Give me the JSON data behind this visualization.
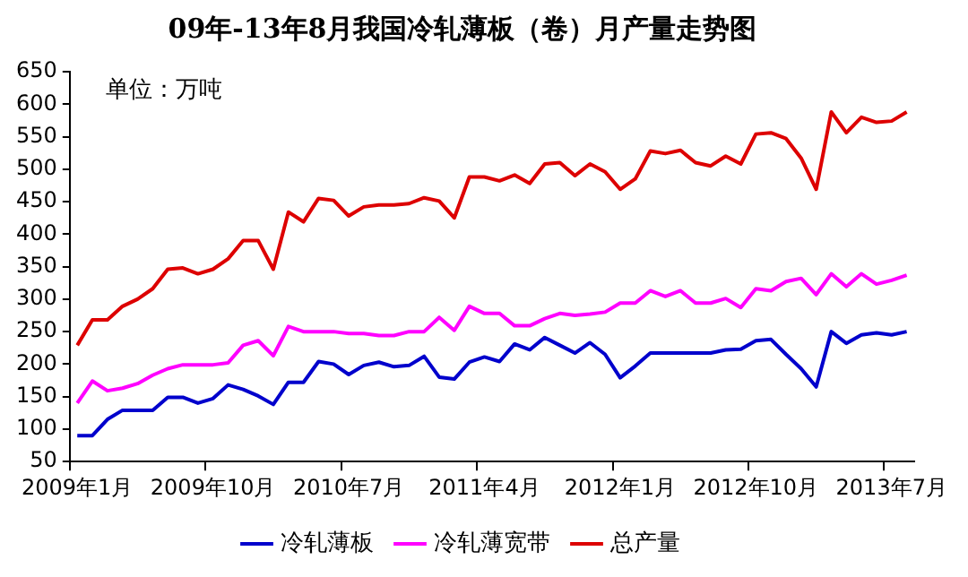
{
  "chart_data": {
    "type": "line",
    "title": "09年-13年8月我国冷轧薄板（卷）月产量走势图",
    "annotations": [
      "单位：万吨"
    ],
    "categories": [
      "2009年1月",
      null,
      null,
      null,
      null,
      null,
      null,
      null,
      null,
      "2009年10月",
      null,
      null,
      null,
      null,
      null,
      null,
      null,
      null,
      "2010年7月",
      null,
      null,
      null,
      null,
      null,
      null,
      null,
      null,
      "2011年4月",
      null,
      null,
      null,
      null,
      null,
      null,
      null,
      null,
      "2012年1月",
      null,
      null,
      null,
      null,
      null,
      null,
      null,
      null,
      "2012年10月",
      null,
      null,
      null,
      null,
      null,
      null,
      null,
      null,
      "2013年7月",
      null
    ],
    "series": [
      {
        "name": "冷轧薄板",
        "color": "#0000cc",
        "values": [
          90,
          90,
          115,
          129,
          129,
          129,
          149,
          149,
          140,
          147,
          168,
          161,
          151,
          138,
          172,
          172,
          204,
          200,
          184,
          198,
          203,
          196,
          198,
          212,
          180,
          177,
          203,
          211,
          204,
          231,
          222,
          241,
          229,
          217,
          233,
          215,
          179,
          197,
          217,
          217,
          217,
          217,
          217,
          222,
          223,
          236,
          238,
          215,
          193,
          165,
          250,
          232,
          245,
          248,
          245,
          250
        ]
      },
      {
        "name": "冷轧薄宽带",
        "color": "#ff00ff",
        "values": [
          140,
          174,
          159,
          163,
          170,
          183,
          193,
          199,
          199,
          199,
          202,
          229,
          236,
          213,
          258,
          250,
          250,
          250,
          247,
          247,
          244,
          244,
          250,
          250,
          272,
          252,
          289,
          278,
          278,
          259,
          259,
          270,
          278,
          275,
          277,
          280,
          294,
          294,
          313,
          304,
          313,
          294,
          294,
          301,
          287,
          316,
          313,
          327,
          332,
          307,
          339,
          319,
          339,
          323,
          329,
          337
        ]
      },
      {
        "name": "总产量",
        "color": "#dd0000",
        "values": [
          229,
          268,
          268,
          289,
          300,
          316,
          346,
          348,
          339,
          346,
          362,
          390,
          390,
          346,
          434,
          419,
          455,
          452,
          428,
          442,
          445,
          445,
          447,
          456,
          451,
          425,
          488,
          488,
          482,
          491,
          478,
          508,
          510,
          490,
          508,
          496,
          469,
          485,
          528,
          524,
          529,
          510,
          505,
          520,
          508,
          554,
          556,
          547,
          517,
          469,
          588,
          556,
          580,
          572,
          574,
          588
        ]
      }
    ],
    "ylim": [
      50,
      650
    ],
    "yticks": [
      50,
      100,
      150,
      200,
      250,
      300,
      350,
      400,
      450,
      500,
      550,
      600,
      650
    ],
    "grid": false,
    "legend": "bottom",
    "marker": "none",
    "line_style": "solid"
  }
}
